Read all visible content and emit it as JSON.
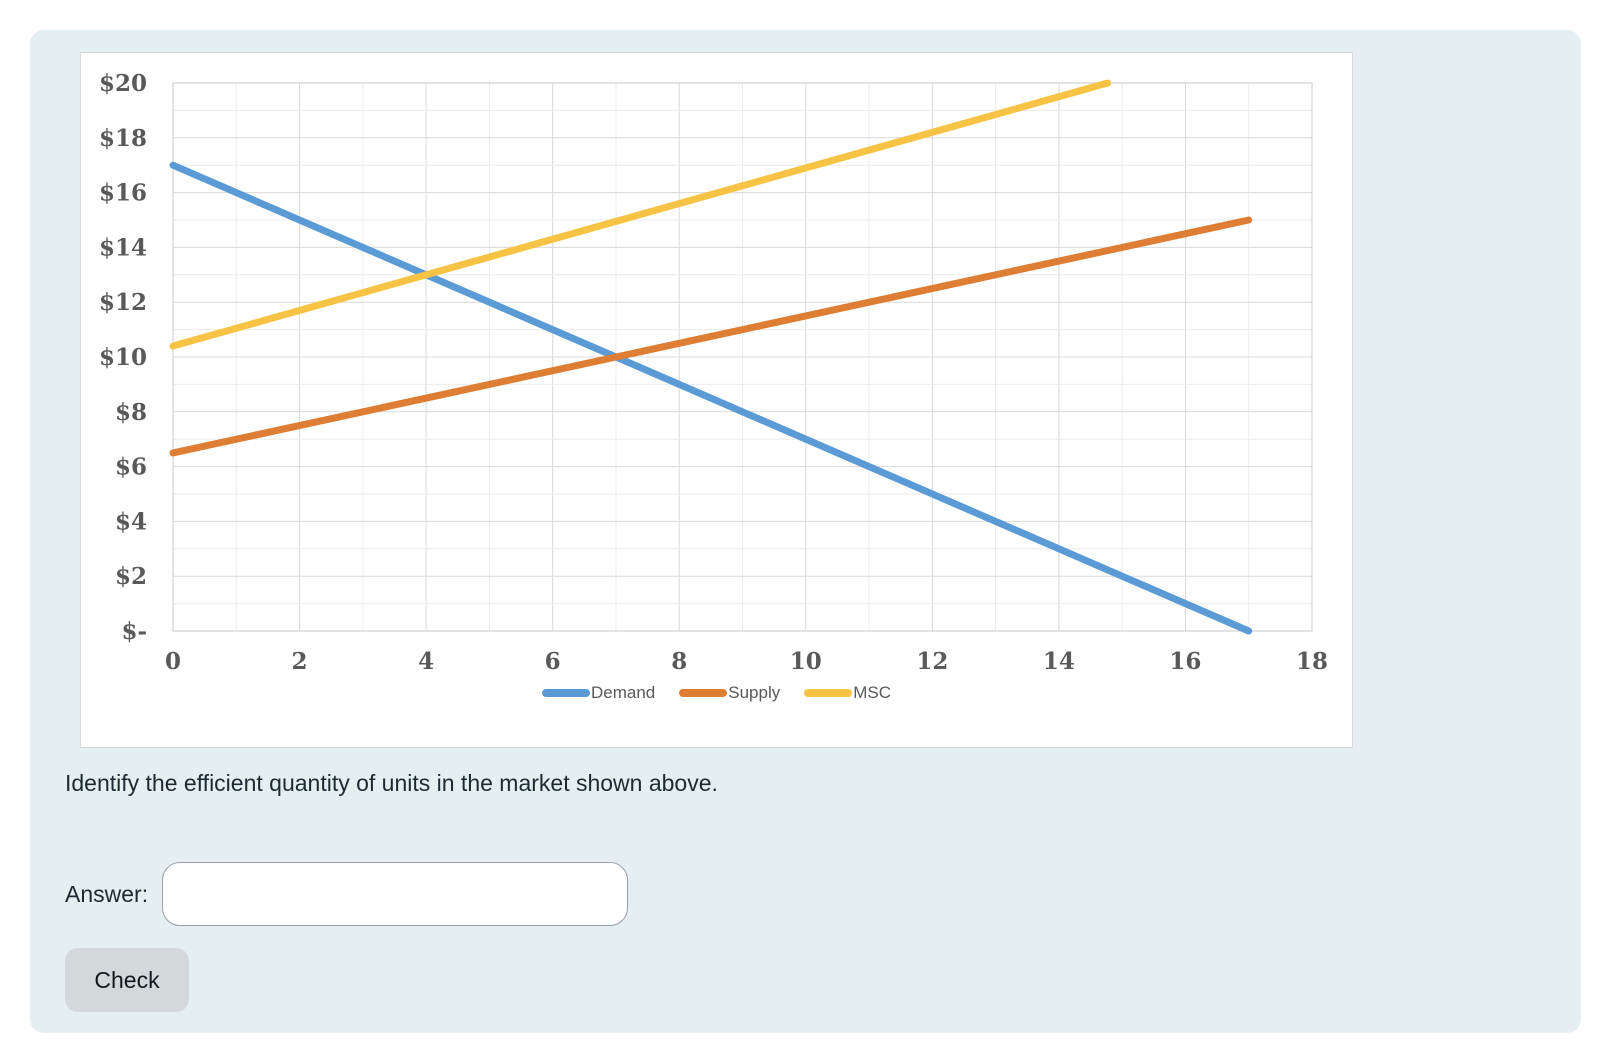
{
  "page": {
    "background": "#ffffff",
    "card_background": "#e5eef1"
  },
  "question": {
    "text": "Identify the efficient quantity of units in the market shown above."
  },
  "answer": {
    "label": "Answer:",
    "value": "",
    "placeholder": ""
  },
  "check_button": {
    "label": "Check"
  },
  "chart_data": {
    "type": "line",
    "title": "",
    "xlabel": "",
    "ylabel": "",
    "xlim": [
      0,
      18
    ],
    "ylim": [
      0,
      20
    ],
    "grid": true,
    "grid_step": 1,
    "x_tick_step": 2,
    "y_tick_step": 2,
    "x_tick_labels": [
      "0",
      "2",
      "4",
      "6",
      "8",
      "10",
      "12",
      "14",
      "16",
      "18"
    ],
    "y_tick_labels": [
      "$-",
      "$2",
      "$4",
      "$6",
      "$8",
      "$10",
      "$12",
      "$14",
      "$16",
      "$18",
      "$20"
    ],
    "legend_position": "bottom",
    "series": [
      {
        "name": "Demand",
        "color": "#5B9BD5",
        "points": [
          [
            0,
            17
          ],
          [
            17,
            0
          ]
        ]
      },
      {
        "name": "Supply",
        "color": "#DE7E35",
        "points": [
          [
            0,
            6.5
          ],
          [
            17,
            15
          ]
        ]
      },
      {
        "name": "MSC",
        "color": "#F6C344",
        "points": [
          [
            0,
            10.4
          ],
          [
            14.77,
            20
          ]
        ]
      }
    ],
    "key_intersections": [
      {
        "between": [
          "Demand",
          "Supply"
        ],
        "x": 7,
        "y": 10
      },
      {
        "between": [
          "Demand",
          "MSC"
        ],
        "x": 4,
        "y": 13
      }
    ]
  }
}
